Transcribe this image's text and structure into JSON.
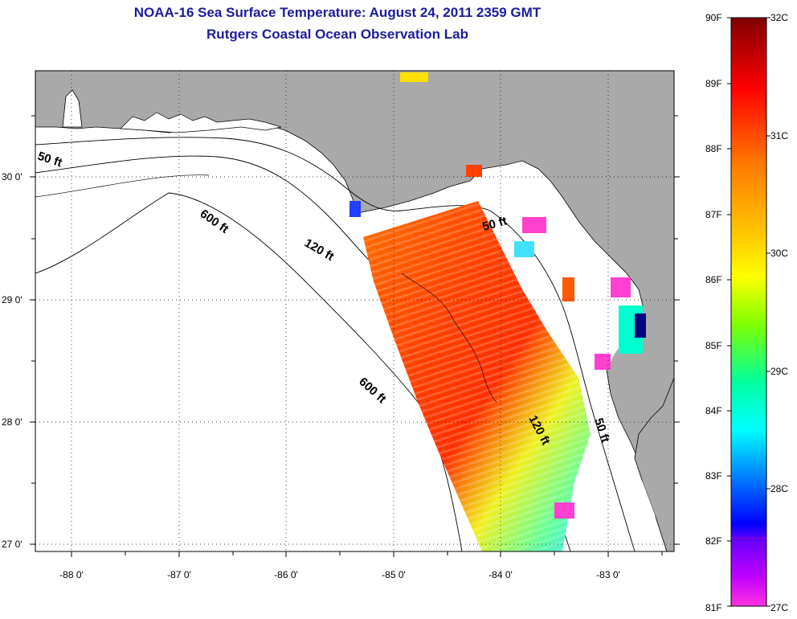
{
  "title": {
    "line1": "NOAA-16 Sea Surface Temperature:  August 24, 2011 2359 GMT",
    "line2": "Rutgers Coastal Ocean Observation Lab"
  },
  "map": {
    "lat_labels": [
      "30 0'",
      "29 0'",
      "28 0'",
      "27 0'"
    ],
    "lon_labels": [
      "-88 0'",
      "-87 0'",
      "-86 0'",
      "-85 0'",
      "-84 0'",
      "-83 0'"
    ],
    "contours": {
      "c50_w": "50 ft",
      "c600_n": "600 ft",
      "c120_n": "120 ft",
      "c50_e": "50 ft",
      "c600_s": "600 ft",
      "c120_s": "120 ft",
      "c50_s": "50 ft"
    },
    "colors": {
      "land": "#a9a9a9",
      "ocean": "#ffffff",
      "grid": "#000000"
    }
  },
  "colorbar": {
    "f_labels": [
      "90F",
      "89F",
      "88F",
      "87F",
      "86F",
      "85F",
      "84F",
      "83F",
      "82F",
      "81F"
    ],
    "c_labels": [
      "32C",
      "31C",
      "30C",
      "29C",
      "28C",
      "27C"
    ],
    "stops": [
      "#800000",
      "#ff0000",
      "#ff8000",
      "#ffff00",
      "#80ff00",
      "#00ffff",
      "#0080ff",
      "#0000ff",
      "#8000ff",
      "#ff00ff"
    ]
  }
}
